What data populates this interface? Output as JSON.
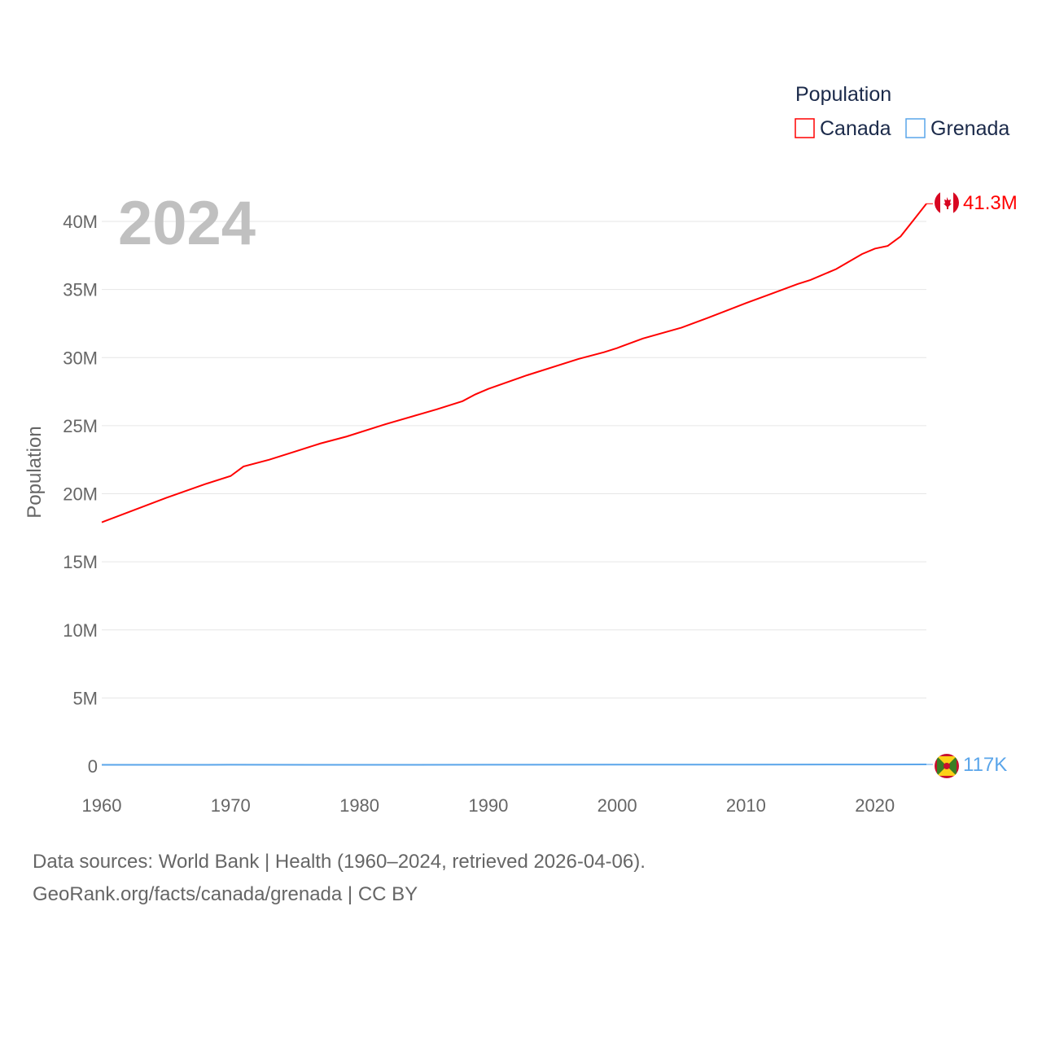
{
  "legend": {
    "title": "Population",
    "items": [
      {
        "label": "Canada",
        "color": "#ff0000"
      },
      {
        "label": "Grenada",
        "color": "#5aa5ea"
      }
    ]
  },
  "year_watermark": "2024",
  "end_labels": {
    "canada": "41.3M",
    "grenada": "117K"
  },
  "flags": {
    "canada": "canada-flag-icon",
    "grenada": "grenada-flag-icon"
  },
  "footer": {
    "line1": "Data sources: World Bank | Health (1960–2024, retrieved 2026-04-06).",
    "line2": "GeoRank.org/facts/canada/grenada | CC BY"
  },
  "chart_data": {
    "type": "line",
    "title": "Population",
    "xlabel": "",
    "ylabel": "Population",
    "xlim": [
      1960,
      2024
    ],
    "ylim": [
      0,
      42000000
    ],
    "xticks": [
      1960,
      1970,
      1980,
      1990,
      2000,
      2010,
      2020
    ],
    "yticks": [
      0,
      5000000,
      10000000,
      15000000,
      20000000,
      25000000,
      30000000,
      35000000,
      40000000
    ],
    "ytick_labels": [
      "0",
      "5M",
      "10M",
      "15M",
      "20M",
      "25M",
      "30M",
      "35M",
      "40M"
    ],
    "grid": true,
    "legend_position": "top-right",
    "series": [
      {
        "name": "Canada",
        "color": "#ff0000",
        "x": [
          1960,
          1965,
          1968,
          1970,
          1971,
          1973,
          1975,
          1977,
          1979,
          1982,
          1986,
          1988,
          1989,
          1990,
          1993,
          1997,
          1999,
          2000,
          2002,
          2005,
          2007,
          2010,
          2012,
          2014,
          2015,
          2017,
          2019,
          2020,
          2021,
          2022,
          2023,
          2024
        ],
        "y": [
          17900000,
          19700000,
          20700000,
          21300000,
          22000000,
          22500000,
          23100000,
          23700000,
          24200000,
          25100000,
          26200000,
          26800000,
          27300000,
          27700000,
          28700000,
          29900000,
          30400000,
          30700000,
          31400000,
          32200000,
          32900000,
          34000000,
          34700000,
          35400000,
          35700000,
          36500000,
          37600000,
          38000000,
          38200000,
          38900000,
          40100000,
          41300000
        ]
      },
      {
        "name": "Grenada",
        "color": "#5aa5ea",
        "x": [
          1960,
          1970,
          1980,
          1990,
          2000,
          2010,
          2020,
          2024
        ],
        "y": [
          90000,
          94000,
          89000,
          96000,
          102000,
          108000,
          114000,
          117000
        ]
      }
    ]
  }
}
